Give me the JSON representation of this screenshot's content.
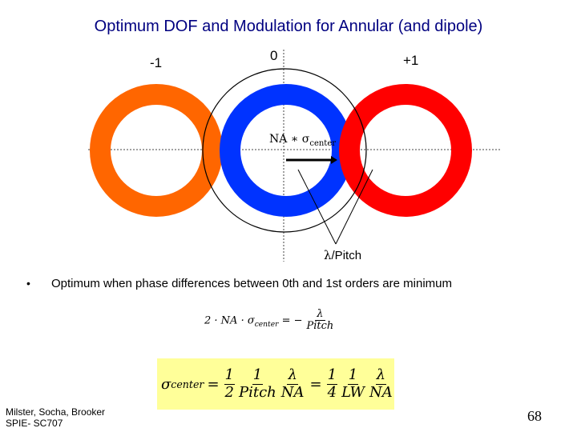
{
  "title": "Optimum DOF and Modulation for Annular (and dipole)",
  "diagram": {
    "order_labels": {
      "minus_one": "-1",
      "zero": "0",
      "plus_one": "+1"
    },
    "na_sigma_label": {
      "base": "NA ∗ σ",
      "subscript": "center"
    },
    "lambda_pitch_label": {
      "symbol": "λ",
      "text": "/Pitch"
    },
    "colors": {
      "minus_one_ring": "#ff6600",
      "zero_ring": "#0033ff",
      "plus_one_ring": "#ff0000",
      "pupil_circle": "#000000",
      "arrow": "#000000"
    }
  },
  "bullet": {
    "marker": "•",
    "text": "Optimum when phase differences between 0th and 1st orders are minimum"
  },
  "equation1": {
    "lhs_prefix": "2 · NA · σ",
    "lhs_subscript": "center",
    "equals": "=",
    "rhs_minus": "−",
    "rhs_num": "λ",
    "rhs_den": "Pitch"
  },
  "equation2": {
    "sigma": "σ",
    "sigma_subscript": "center",
    "equals1": "=",
    "equals2": "=",
    "frac1_num": "1",
    "frac1_den": "2",
    "frac2_num": "1",
    "frac2_den": "Pitch",
    "frac3_num": "λ",
    "frac3_den": "NA",
    "frac4_num": "1",
    "frac4_den": "4",
    "frac5_num": "1",
    "frac5_den": "LW",
    "frac6_num": "λ",
    "frac6_den": "NA",
    "highlight_color": "#ffff99"
  },
  "footer": {
    "credits_line1": "Milster, Socha, Brooker",
    "credits_line2": "SPIE- SC707",
    "page_number": "68"
  }
}
